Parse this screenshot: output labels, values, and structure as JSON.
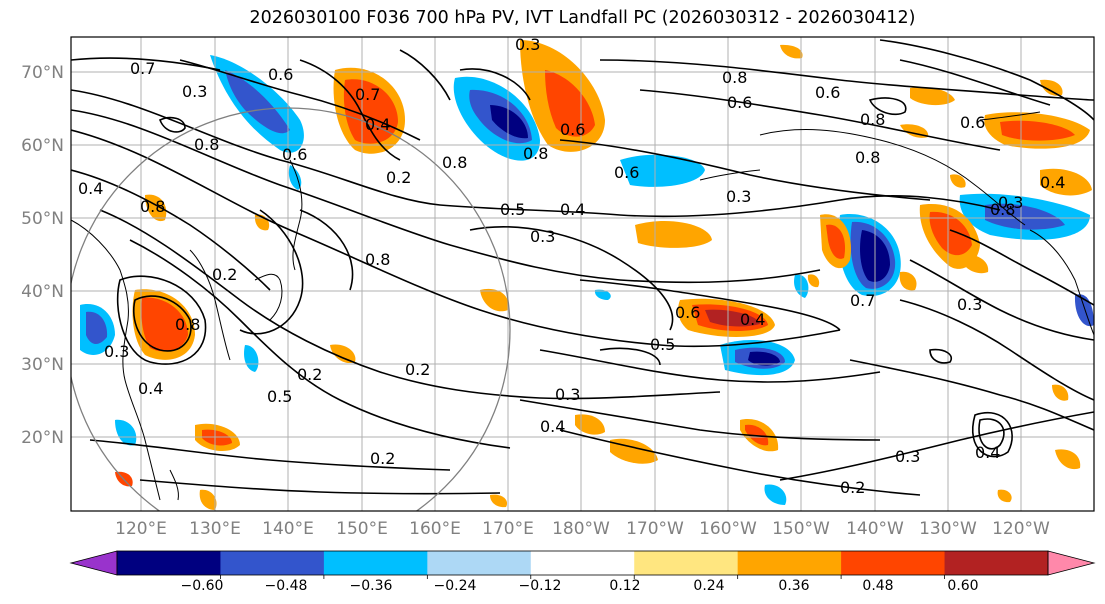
{
  "title": "2026030100 F036 700 hPa PV, IVT Landfall PC (2026030312 - 2026030412)",
  "map": {
    "lat_labels": [
      "70°N",
      "60°N",
      "50°N",
      "40°N",
      "30°N",
      "20°N"
    ],
    "lon_labels": [
      "120°E",
      "130°E",
      "140°E",
      "150°E",
      "160°E",
      "170°E",
      "180°W",
      "170°W",
      "160°W",
      "150°W",
      "140°W",
      "130°W",
      "120°W"
    ],
    "contour_labels": [
      "0.7",
      "0.3",
      "0.6",
      "0.8",
      "0.4",
      "0.6",
      "0.7",
      "0.8",
      "0.2",
      "0.4",
      "0.8",
      "0.8",
      "0.5",
      "0.4",
      "0.6",
      "0.3",
      "0.6",
      "0.8",
      "0.8",
      "0.8",
      "0.3",
      "0.2",
      "0.5",
      "0.3",
      "0.4",
      "0.2",
      "0.2",
      "0.3",
      "0.4",
      "0.2",
      "0.6",
      "0.5",
      "0.4",
      "0.6",
      "0.3",
      "0.7",
      "0.8",
      "0.6",
      "0.3",
      "0.8",
      "0.2",
      "0.3",
      "0.4",
      "0.4",
      "0.3",
      "0.6",
      "0.8"
    ]
  },
  "colorbar": {
    "ticks": [
      "−0.60",
      "−0.48",
      "−0.36",
      "−0.24",
      "−0.12",
      "0.12",
      "0.24",
      "0.36",
      "0.48",
      "0.60"
    ],
    "colors": [
      "#9933cc",
      "#000080",
      "#3355cc",
      "#00bfff",
      "#add8f5",
      "#ffffff",
      "#ffe680",
      "#ffa500",
      "#ff4500",
      "#b22222",
      "#ff88aa"
    ]
  }
}
